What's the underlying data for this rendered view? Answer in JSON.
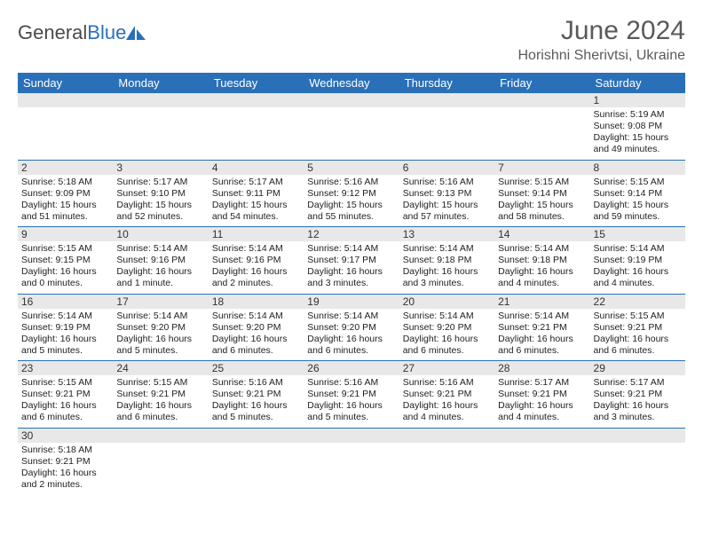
{
  "brand": {
    "part1": "General",
    "part2": "Blue"
  },
  "title": "June 2024",
  "location": "Horishni Sherivtsi, Ukraine",
  "colors": {
    "header_bg": "#2a70b8",
    "header_text": "#ffffff",
    "daynum_bg": "#e8e8e8",
    "border": "#2a70b8",
    "title_color": "#5a5a5a"
  },
  "weekdays": [
    "Sunday",
    "Monday",
    "Tuesday",
    "Wednesday",
    "Thursday",
    "Friday",
    "Saturday"
  ],
  "weeks": [
    [
      null,
      null,
      null,
      null,
      null,
      null,
      {
        "n": "1",
        "sr": "5:19 AM",
        "ss": "9:08 PM",
        "dl": "15 hours and 49 minutes."
      }
    ],
    [
      {
        "n": "2",
        "sr": "5:18 AM",
        "ss": "9:09 PM",
        "dl": "15 hours and 51 minutes."
      },
      {
        "n": "3",
        "sr": "5:17 AM",
        "ss": "9:10 PM",
        "dl": "15 hours and 52 minutes."
      },
      {
        "n": "4",
        "sr": "5:17 AM",
        "ss": "9:11 PM",
        "dl": "15 hours and 54 minutes."
      },
      {
        "n": "5",
        "sr": "5:16 AM",
        "ss": "9:12 PM",
        "dl": "15 hours and 55 minutes."
      },
      {
        "n": "6",
        "sr": "5:16 AM",
        "ss": "9:13 PM",
        "dl": "15 hours and 57 minutes."
      },
      {
        "n": "7",
        "sr": "5:15 AM",
        "ss": "9:14 PM",
        "dl": "15 hours and 58 minutes."
      },
      {
        "n": "8",
        "sr": "5:15 AM",
        "ss": "9:14 PM",
        "dl": "15 hours and 59 minutes."
      }
    ],
    [
      {
        "n": "9",
        "sr": "5:15 AM",
        "ss": "9:15 PM",
        "dl": "16 hours and 0 minutes."
      },
      {
        "n": "10",
        "sr": "5:14 AM",
        "ss": "9:16 PM",
        "dl": "16 hours and 1 minute."
      },
      {
        "n": "11",
        "sr": "5:14 AM",
        "ss": "9:16 PM",
        "dl": "16 hours and 2 minutes."
      },
      {
        "n": "12",
        "sr": "5:14 AM",
        "ss": "9:17 PM",
        "dl": "16 hours and 3 minutes."
      },
      {
        "n": "13",
        "sr": "5:14 AM",
        "ss": "9:18 PM",
        "dl": "16 hours and 3 minutes."
      },
      {
        "n": "14",
        "sr": "5:14 AM",
        "ss": "9:18 PM",
        "dl": "16 hours and 4 minutes."
      },
      {
        "n": "15",
        "sr": "5:14 AM",
        "ss": "9:19 PM",
        "dl": "16 hours and 4 minutes."
      }
    ],
    [
      {
        "n": "16",
        "sr": "5:14 AM",
        "ss": "9:19 PM",
        "dl": "16 hours and 5 minutes."
      },
      {
        "n": "17",
        "sr": "5:14 AM",
        "ss": "9:20 PM",
        "dl": "16 hours and 5 minutes."
      },
      {
        "n": "18",
        "sr": "5:14 AM",
        "ss": "9:20 PM",
        "dl": "16 hours and 6 minutes."
      },
      {
        "n": "19",
        "sr": "5:14 AM",
        "ss": "9:20 PM",
        "dl": "16 hours and 6 minutes."
      },
      {
        "n": "20",
        "sr": "5:14 AM",
        "ss": "9:20 PM",
        "dl": "16 hours and 6 minutes."
      },
      {
        "n": "21",
        "sr": "5:14 AM",
        "ss": "9:21 PM",
        "dl": "16 hours and 6 minutes."
      },
      {
        "n": "22",
        "sr": "5:15 AM",
        "ss": "9:21 PM",
        "dl": "16 hours and 6 minutes."
      }
    ],
    [
      {
        "n": "23",
        "sr": "5:15 AM",
        "ss": "9:21 PM",
        "dl": "16 hours and 6 minutes."
      },
      {
        "n": "24",
        "sr": "5:15 AM",
        "ss": "9:21 PM",
        "dl": "16 hours and 6 minutes."
      },
      {
        "n": "25",
        "sr": "5:16 AM",
        "ss": "9:21 PM",
        "dl": "16 hours and 5 minutes."
      },
      {
        "n": "26",
        "sr": "5:16 AM",
        "ss": "9:21 PM",
        "dl": "16 hours and 5 minutes."
      },
      {
        "n": "27",
        "sr": "5:16 AM",
        "ss": "9:21 PM",
        "dl": "16 hours and 4 minutes."
      },
      {
        "n": "28",
        "sr": "5:17 AM",
        "ss": "9:21 PM",
        "dl": "16 hours and 4 minutes."
      },
      {
        "n": "29",
        "sr": "5:17 AM",
        "ss": "9:21 PM",
        "dl": "16 hours and 3 minutes."
      }
    ],
    [
      {
        "n": "30",
        "sr": "5:18 AM",
        "ss": "9:21 PM",
        "dl": "16 hours and 2 minutes."
      },
      null,
      null,
      null,
      null,
      null,
      null
    ]
  ],
  "labels": {
    "sunrise": "Sunrise:",
    "sunset": "Sunset:",
    "daylight": "Daylight:"
  }
}
